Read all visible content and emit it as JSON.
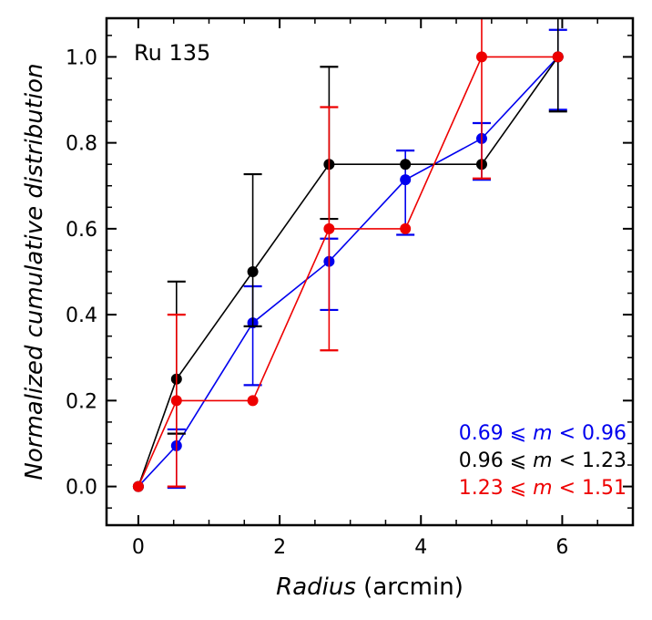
{
  "chart_data": {
    "type": "line",
    "annotation": "Ru 135",
    "xlabel_italic": "Radius",
    "xlabel_unit": " (arcmin)",
    "ylabel": "Normalized cumulative distribution",
    "xlim": [
      -0.45,
      7.0
    ],
    "ylim": [
      -0.09,
      1.09
    ],
    "xticks": [
      0,
      2,
      4,
      6
    ],
    "xtick_labels": [
      "0",
      "2",
      "4",
      "6"
    ],
    "yticks": [
      0.0,
      0.2,
      0.4,
      0.6,
      0.8,
      1.0
    ],
    "ytick_labels": [
      "0.0",
      "0.2",
      "0.4",
      "0.6",
      "0.8",
      "1.0"
    ],
    "series": [
      {
        "name": "0.69 ≤ m < 0.96",
        "legend": {
          "lo": "0.69",
          "rel1": " ⩽ ",
          "var": "m",
          "rel2": " < ",
          "hi": "0.96"
        },
        "color": "#0000ee",
        "x": [
          0,
          0.54,
          1.62,
          2.7,
          3.78,
          4.86,
          5.94
        ],
        "y": [
          0,
          0.095,
          0.381,
          0.524,
          0.714,
          0.81,
          1.0
        ],
        "err": [
          0,
          0.068,
          0.115,
          0.083,
          0.098,
          0.066,
          0.093
        ],
        "err_offset": -0.03
      },
      {
        "name": "0.96 ≤ m < 1.23",
        "legend": {
          "lo": "0.96",
          "rel1": " ⩽ ",
          "var": "m",
          "rel2": " < ",
          "hi": "1.23"
        },
        "color": "#000000",
        "x": [
          0,
          0.54,
          1.62,
          2.7,
          3.78,
          4.86,
          5.94
        ],
        "y": [
          0,
          0.25,
          0.5,
          0.75,
          0.75,
          0.75,
          1.0
        ],
        "err": [
          0,
          0.177,
          0.177,
          0.177,
          0,
          0,
          0.177
        ],
        "err_offset": 0.05
      },
      {
        "name": "1.23 ≤ m < 1.51",
        "legend": {
          "lo": "1.23",
          "rel1": " ⩽ ",
          "var": "m",
          "rel2": " < ",
          "hi": "1.51"
        },
        "color": "#ee0000",
        "x": [
          0,
          0.54,
          1.62,
          2.7,
          3.78,
          4.86,
          5.94
        ],
        "y": [
          0,
          0.2,
          0.2,
          0.6,
          0.6,
          1.0,
          1.0
        ],
        "err": [
          0,
          0.2,
          0,
          0.283,
          0,
          0.283,
          0
        ],
        "err_offset": 0.0
      }
    ]
  }
}
